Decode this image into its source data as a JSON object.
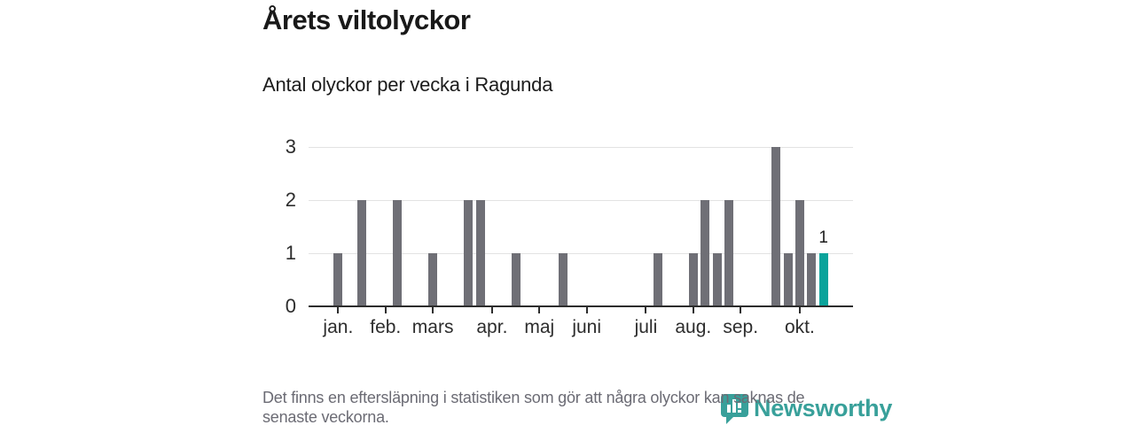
{
  "header": {
    "title": "Årets viltolyckor",
    "subtitle": "Antal olyckor per vecka i Ragunda"
  },
  "footer": {
    "note_lines": [
      "Det finns en eftersläpning i statistiken som gör att några olyckor kan saknas de",
      "senaste veckorna."
    ]
  },
  "logo": {
    "text": "Newsworthy",
    "color": "#38a09a"
  },
  "chart_data": {
    "type": "bar",
    "title": "Årets viltolyckor",
    "subtitle": "Antal olyckor per vecka i Ragunda",
    "xlabel": "",
    "ylabel": "",
    "ylim": [
      0,
      3
    ],
    "yticks": [
      0,
      1,
      2,
      3
    ],
    "grid": "horizontal",
    "x_unit": "week",
    "n_slots": 46,
    "bars": [
      {
        "week_slot": 3,
        "value": 1
      },
      {
        "week_slot": 5,
        "value": 2
      },
      {
        "week_slot": 8,
        "value": 2
      },
      {
        "week_slot": 11,
        "value": 1
      },
      {
        "week_slot": 14,
        "value": 2
      },
      {
        "week_slot": 15,
        "value": 2
      },
      {
        "week_slot": 18,
        "value": 1
      },
      {
        "week_slot": 22,
        "value": 1
      },
      {
        "week_slot": 30,
        "value": 1
      },
      {
        "week_slot": 33,
        "value": 1
      },
      {
        "week_slot": 34,
        "value": 2
      },
      {
        "week_slot": 35,
        "value": 1
      },
      {
        "week_slot": 36,
        "value": 2
      },
      {
        "week_slot": 40,
        "value": 3
      },
      {
        "week_slot": 41,
        "value": 1
      },
      {
        "week_slot": 42,
        "value": 2
      },
      {
        "week_slot": 43,
        "value": 1
      },
      {
        "week_slot": 44,
        "value": 1,
        "highlight": true
      }
    ],
    "highlight": {
      "week_slot": 44,
      "value": 1,
      "label": "1"
    },
    "months": [
      {
        "label": "jan.",
        "slot": 3
      },
      {
        "label": "feb.",
        "slot": 7
      },
      {
        "label": "mars",
        "slot": 11
      },
      {
        "label": "apr.",
        "slot": 16
      },
      {
        "label": "maj",
        "slot": 20
      },
      {
        "label": "juni",
        "slot": 24
      },
      {
        "label": "juli",
        "slot": 29
      },
      {
        "label": "aug.",
        "slot": 33
      },
      {
        "label": "sep.",
        "slot": 37
      },
      {
        "label": "okt.",
        "slot": 42
      }
    ],
    "colors": {
      "bar": "#6f6f76",
      "highlight": "#0aa39b",
      "gridline": "#e3e3e3",
      "axis": "#2d2d2d"
    }
  }
}
